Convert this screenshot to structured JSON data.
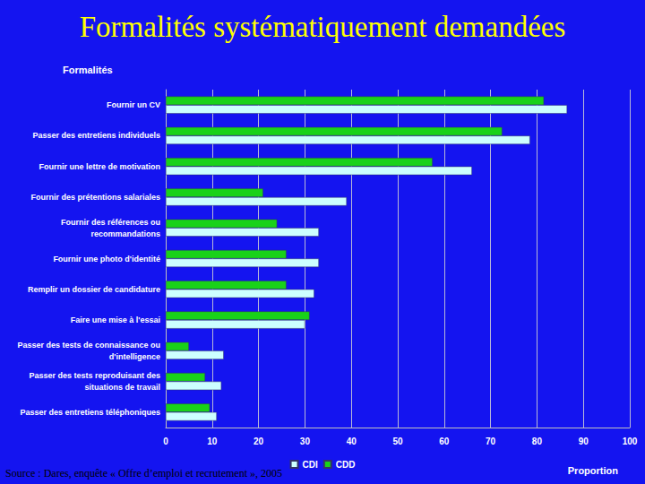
{
  "chart_data": {
    "type": "bar",
    "title": "Formalités systématiquement demandées",
    "y_label": "Formalités",
    "x_label": "Proportion",
    "annotations": [
      "Source : Dares, enquête « Offre d’emploi et recrutement », 2005"
    ],
    "orientation": "horizontal",
    "categories": [
      "Fournir un CV",
      "Passer des entretiens individuels",
      "Fournir une lettre de motivation",
      "Fournir des prétentions salariales",
      "Fournir des références ou\nrecommandations",
      "Fournir une photo d'identité",
      "Remplir un dossier de candidature",
      "Faire une mise à l'essai",
      "Passer des tests de connaissance ou\nd'intelligence",
      "Passer des tests reproduisant des\nsituations de travail",
      "Passer des entretiens téléphoniques"
    ],
    "series": [
      {
        "name": "CDI",
        "color": "#ccffff",
        "values": [
          86.5,
          78.5,
          66,
          39,
          33,
          33,
          32,
          30,
          12.5,
          12,
          11
        ]
      },
      {
        "name": "CDD",
        "color": "#19d219",
        "values": [
          81.5,
          72.5,
          57.5,
          21,
          24,
          26,
          26,
          31,
          5,
          8.5,
          9.5
        ]
      }
    ],
    "xlim": [
      0,
      100
    ],
    "xticks": [
      0,
      10,
      20,
      30,
      40,
      50,
      60,
      70,
      80,
      90,
      100
    ],
    "grid": true,
    "legend": "bottom"
  }
}
